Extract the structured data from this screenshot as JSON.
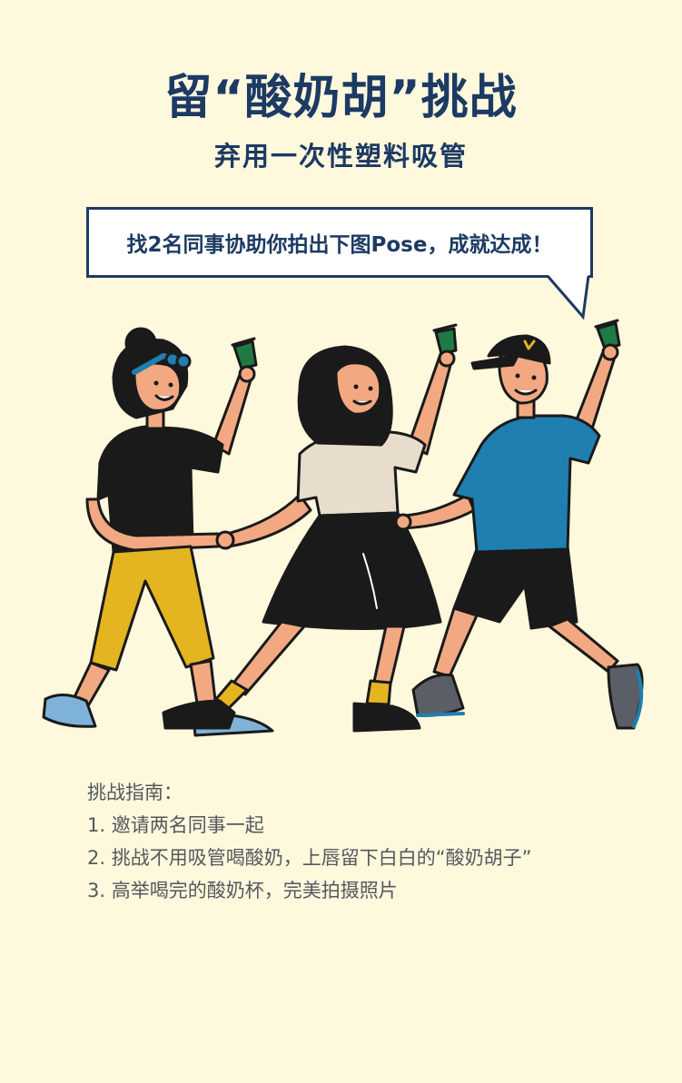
{
  "title": "留“酸奶胡”挑战",
  "subtitle": "弃用一次性塑料吸管",
  "bubble": {
    "text": "找2名同事协助你拍出下图Pose，成就达成！"
  },
  "illustration": {
    "icons": [
      "person-left-icon",
      "person-middle-icon",
      "person-right-icon",
      "yogurt-cup-icon"
    ]
  },
  "guide": {
    "heading": "挑战指南：",
    "steps": [
      "1. 邀请两名同事一起",
      "2. 挑战不用吸管喝酸奶，上唇留下白白的“酸奶胡子”",
      "3. 高举喝完的酸奶杯，完美拍摄照片"
    ]
  },
  "colors": {
    "background": "#FEF8DD",
    "navy": "#1C3A63",
    "guide_text": "#55585C",
    "yellow": "#E4B521",
    "blue_shirt": "#1E7FB0",
    "black": "#1A1A1A",
    "skin": "#F2A982",
    "cup_green": "#1F7A45"
  }
}
